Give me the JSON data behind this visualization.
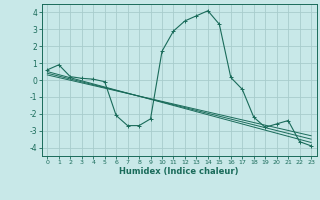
{
  "title": "",
  "xlabel": "Humidex (Indice chaleur)",
  "background_color": "#c8e8e8",
  "grid_color": "#a8cccc",
  "line_color": "#1a6b5a",
  "xlim": [
    -0.5,
    23.5
  ],
  "ylim": [
    -4.5,
    4.5
  ],
  "xticks": [
    0,
    1,
    2,
    3,
    4,
    5,
    6,
    7,
    8,
    9,
    10,
    11,
    12,
    13,
    14,
    15,
    16,
    17,
    18,
    19,
    20,
    21,
    22,
    23
  ],
  "yticks": [
    -4,
    -3,
    -2,
    -1,
    0,
    1,
    2,
    3,
    4
  ],
  "main_x": [
    0,
    1,
    2,
    3,
    4,
    5,
    6,
    7,
    8,
    9,
    10,
    11,
    12,
    13,
    14,
    15,
    16,
    17,
    18,
    19,
    20,
    21,
    22,
    23
  ],
  "main_y": [
    0.6,
    0.9,
    0.2,
    0.1,
    0.05,
    -0.1,
    -2.1,
    -2.7,
    -2.7,
    -2.3,
    1.7,
    2.9,
    3.5,
    3.8,
    4.1,
    3.3,
    0.15,
    -0.55,
    -2.2,
    -2.8,
    -2.6,
    -2.4,
    -3.65,
    -3.9
  ],
  "line1_x": [
    0,
    23
  ],
  "line1_y": [
    0.5,
    -3.7
  ],
  "line2_x": [
    0,
    23
  ],
  "line2_y": [
    0.4,
    -3.5
  ],
  "line3_x": [
    0,
    23
  ],
  "line3_y": [
    0.3,
    -3.3
  ]
}
